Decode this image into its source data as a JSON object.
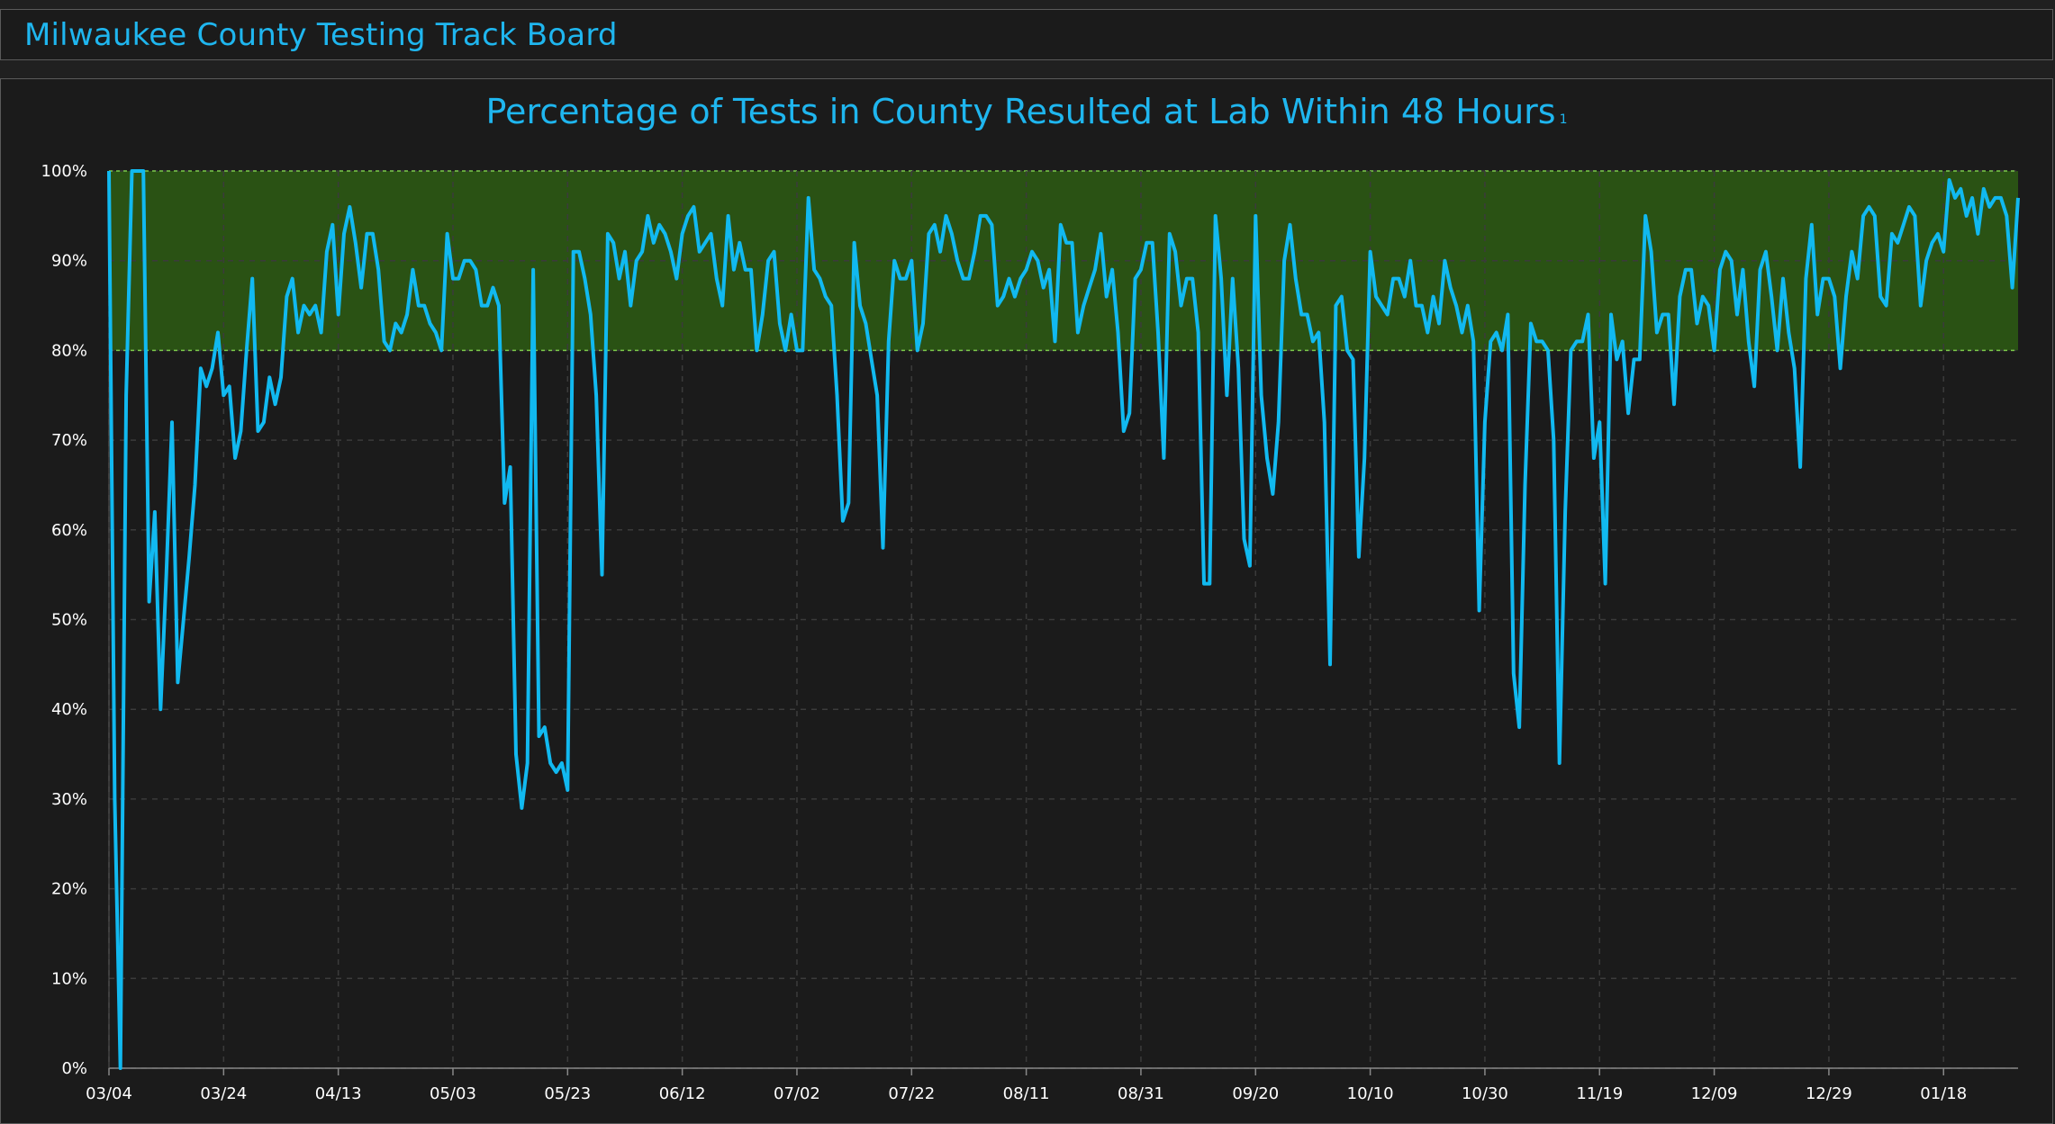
{
  "header": {
    "title": "Milwaukee County Testing Track Board"
  },
  "colors": {
    "accent": "#1fb6ef",
    "line": "#11b9f0",
    "target_band": "#2a5214",
    "target_border": "#7bc94a",
    "grid": "#3b3b3b",
    "text": "#ffffff"
  },
  "chart_data": {
    "type": "line",
    "title": "Percentage of Tests in County Resulted at Lab Within 48 Hours",
    "title_footnote": "1",
    "xlabel": "",
    "ylabel": "",
    "ylim": [
      0,
      100
    ],
    "y_ticks": [
      "0%",
      "10%",
      "20%",
      "30%",
      "40%",
      "50%",
      "60%",
      "70%",
      "80%",
      "90%",
      "100%"
    ],
    "x_ticks": [
      "03/04",
      "03/24",
      "04/13",
      "05/03",
      "05/23",
      "06/12",
      "07/02",
      "07/22",
      "08/11",
      "08/31",
      "09/20",
      "10/10",
      "10/30",
      "11/19",
      "12/09",
      "12/29",
      "01/18"
    ],
    "x_range": [
      "03/04",
      "01/31"
    ],
    "grid": true,
    "target_band": [
      80,
      100
    ],
    "series": [
      {
        "x_start": "03/04",
        "x_step_days": 1,
        "values": [
          100,
          30,
          0,
          75,
          100,
          100,
          100,
          52,
          62,
          40,
          55,
          72,
          43,
          50,
          57,
          65,
          78,
          76,
          78,
          82,
          75,
          76,
          68,
          71,
          80,
          88,
          71,
          72,
          77,
          74,
          77,
          86,
          88,
          82,
          85,
          84,
          85,
          82,
          91,
          94,
          84,
          93,
          96,
          92,
          87,
          93,
          93,
          89,
          81,
          80,
          83,
          82,
          84,
          89,
          85,
          85,
          83,
          82,
          80,
          93,
          88,
          88,
          90,
          90,
          89,
          85,
          85,
          87,
          85,
          63,
          67,
          35,
          29,
          34,
          89,
          37,
          38,
          34,
          33,
          34,
          31,
          91,
          91,
          88,
          84,
          75,
          55,
          93,
          92,
          88,
          91,
          85,
          90,
          91,
          95,
          92,
          94,
          93,
          91,
          88,
          93,
          95,
          96,
          91,
          92,
          93,
          88,
          85,
          95,
          89,
          92,
          89,
          89,
          80,
          84,
          90,
          91,
          83,
          80,
          84,
          80,
          80,
          97,
          89,
          88,
          86,
          85,
          75,
          61,
          63,
          92,
          85,
          83,
          79,
          75,
          58,
          81,
          90,
          88,
          88,
          90,
          80,
          83,
          93,
          94,
          91,
          95,
          93,
          90,
          88,
          88,
          91,
          95,
          95,
          94,
          85,
          86,
          88,
          86,
          88,
          89,
          91,
          90,
          87,
          89,
          81,
          94,
          92,
          92,
          82,
          85,
          87,
          89,
          93,
          86,
          89,
          82,
          71,
          73,
          88,
          89,
          92,
          92,
          82,
          68,
          93,
          91,
          85,
          88,
          88,
          82,
          54,
          54,
          95,
          88,
          75,
          88,
          78,
          59,
          56,
          95,
          75,
          68,
          64,
          72,
          90,
          94,
          88,
          84,
          84,
          81,
          82,
          72,
          45,
          85,
          86,
          80,
          79,
          57,
          68,
          91,
          86,
          85,
          84,
          88,
          88,
          86,
          90,
          85,
          85,
          82,
          86,
          83,
          90,
          87,
          85,
          82,
          85,
          81,
          51,
          72,
          81,
          82,
          80,
          84,
          44,
          38,
          65,
          83,
          81,
          81,
          80,
          70,
          34,
          62,
          80,
          81,
          81,
          84,
          68,
          72,
          54,
          84,
          79,
          81,
          73,
          79,
          79,
          95,
          91,
          82,
          84,
          84,
          74,
          86,
          89,
          89,
          83,
          86,
          85,
          80,
          89,
          91,
          90,
          84,
          89,
          81,
          76,
          89,
          91,
          86,
          80,
          88,
          82,
          78,
          67,
          88,
          94,
          84,
          88,
          88,
          86,
          78,
          86,
          91,
          88,
          95,
          96,
          95,
          86,
          85,
          93,
          92,
          94,
          96,
          95,
          85,
          90,
          92,
          93,
          91,
          99,
          97,
          98,
          95,
          97,
          93,
          98,
          96,
          97,
          97,
          95,
          87,
          97
        ]
      }
    ]
  }
}
